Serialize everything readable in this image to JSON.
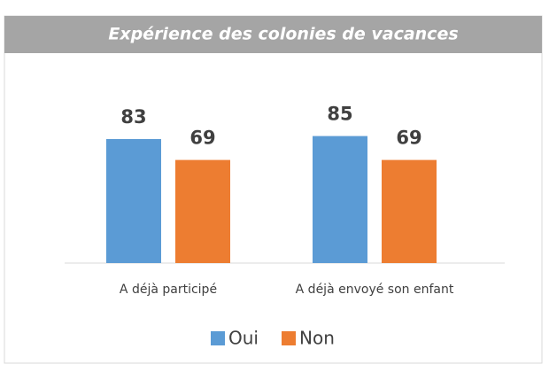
{
  "chart_data": {
    "type": "bar",
    "title": "Expérience des colonies de vacances",
    "categories": [
      "A déjà participé",
      "A déjà envoyé son enfant"
    ],
    "series": [
      {
        "name": "Oui",
        "color": "#5b9bd5",
        "values": [
          83,
          85
        ]
      },
      {
        "name": "Non",
        "color": "#ed7d31",
        "values": [
          69,
          69
        ]
      }
    ],
    "ylim": [
      0,
      100
    ],
    "legend": "bottom"
  }
}
